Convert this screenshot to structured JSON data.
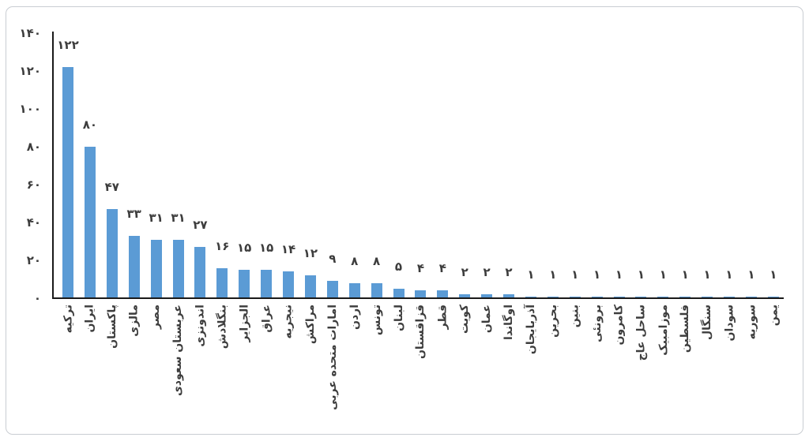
{
  "frame": {
    "background": "#ffffff",
    "border_color": "#c9cdd2"
  },
  "chart_data": {
    "type": "bar",
    "title": "",
    "xlabel": "",
    "ylabel": "",
    "ylim": [
      0,
      140
    ],
    "y_tick_step": 20,
    "grid": false,
    "legend": false,
    "rtl": true,
    "bar_color": "#5B9BD5",
    "axis_color": "#1a1a1a",
    "text_color": "#3d3d3d",
    "categories": [
      "ترکیه",
      "ایران",
      "پاکستان",
      "مالزی",
      "مصر",
      "عربستان سعودی",
      "اندونزی",
      "بنگلادش",
      "الجزایر",
      "عراق",
      "نیجریه",
      "مراکش",
      "امارات متحده عربی",
      "اردن",
      "تونس",
      "لبنان",
      "قزاقستان",
      "قطر",
      "کویت",
      "عمان",
      "اوگاندا",
      "آذربایجان",
      "بحرین",
      "بنین",
      "برونئی",
      "کامرون",
      "ساحل عاج",
      "موزامبیک",
      "فلسطین",
      "سنگال",
      "سودان",
      "سوریه",
      "یمن"
    ],
    "values": [
      122,
      80,
      47,
      33,
      31,
      31,
      27,
      16,
      15,
      15,
      14,
      12,
      9,
      8,
      8,
      5,
      4,
      4,
      2,
      2,
      2,
      1,
      1,
      1,
      1,
      1,
      1,
      1,
      1,
      1,
      1,
      1,
      1
    ],
    "bar_labels": [
      "۱۲۲",
      "۸۰",
      "۴۷",
      "۳۳",
      "۳۱",
      "۳۱",
      "۲۷",
      "۱۶",
      "۱۵",
      "۱۵",
      "۱۴",
      "۱۲",
      "۹",
      "۸",
      "۸",
      "۵",
      "۴",
      "۴",
      "۲",
      "۲",
      "۲",
      "۱",
      "۱",
      "۱",
      "۱",
      "۱",
      "۱",
      "۱",
      "۱",
      "۱",
      "۱",
      "۱",
      "۱"
    ],
    "y_ticks": [
      {
        "value": 0,
        "label": "۰"
      },
      {
        "value": 20,
        "label": "۲۰"
      },
      {
        "value": 40,
        "label": "۴۰"
      },
      {
        "value": 60,
        "label": "۶۰"
      },
      {
        "value": 80,
        "label": "۸۰"
      },
      {
        "value": 100,
        "label": "۱۰۰"
      },
      {
        "value": 120,
        "label": "۱۲۰"
      },
      {
        "value": 140,
        "label": "۱۴۰"
      }
    ]
  }
}
